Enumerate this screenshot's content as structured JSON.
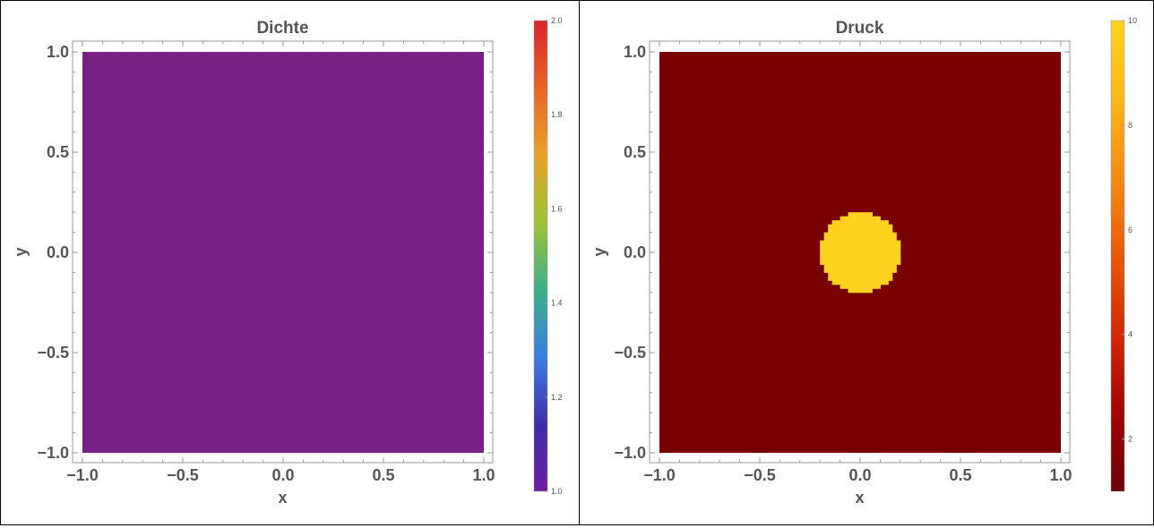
{
  "chart_data": [
    {
      "type": "heatmap",
      "title": "Dichte",
      "xlabel": "x",
      "ylabel": "y",
      "xlim": [
        -1.0,
        1.0
      ],
      "ylim": [
        -1.0,
        1.0
      ],
      "xticks": [
        "−1.0",
        "−0.5",
        "0.0",
        "0.5",
        "1.0"
      ],
      "yticks": [
        "−1.0",
        "−0.5",
        "0.0",
        "0.5",
        "1.0"
      ],
      "xtick_values": [
        -1.0,
        -0.5,
        0.0,
        0.5,
        1.0
      ],
      "ytick_values": [
        -1.0,
        -0.5,
        0.0,
        0.5,
        1.0
      ],
      "field": {
        "background_value": 1.0,
        "disk_value": 1.0,
        "disk_center": [
          0.0,
          0.0
        ],
        "disk_radius": 0.2
      },
      "fill_color": "#782084",
      "colorbar": {
        "min": 1.0,
        "max": 2.0,
        "ticks": [
          "1.0",
          "1.2",
          "1.4",
          "1.6",
          "1.8",
          "2.0"
        ],
        "tick_values": [
          1.0,
          1.2,
          1.4,
          1.6,
          1.8,
          2.0
        ],
        "colors": [
          "#6f1ca2",
          "#3e2fa7",
          "#3d7ee0",
          "#3fae88",
          "#9fc13a",
          "#e5a32c",
          "#e8642b",
          "#d8262b"
        ]
      },
      "grid": false
    },
    {
      "type": "heatmap",
      "title": "Druck",
      "xlabel": "x",
      "ylabel": "y",
      "xlim": [
        -1.0,
        1.0
      ],
      "ylim": [
        -1.0,
        1.0
      ],
      "xticks": [
        "−1.0",
        "−0.5",
        "0.0",
        "0.5",
        "1.0"
      ],
      "yticks": [
        "−1.0",
        "−0.5",
        "0.0",
        "0.5",
        "1.0"
      ],
      "xtick_values": [
        -1.0,
        -0.5,
        0.0,
        0.5,
        1.0
      ],
      "ytick_values": [
        -1.0,
        -0.5,
        0.0,
        0.5,
        1.0
      ],
      "field": {
        "background_value": 1.0,
        "disk_value": 10.0,
        "disk_center": [
          0.0,
          0.0
        ],
        "disk_radius": 0.2
      },
      "background_color": "#780003",
      "disk_color": "#ffd21f",
      "colorbar": {
        "min": 1.0,
        "max": 10.0,
        "ticks": [
          "2",
          "4",
          "6",
          "8",
          "10"
        ],
        "tick_values": [
          2,
          4,
          6,
          8,
          10
        ],
        "colors": [
          "#6a0005",
          "#a10303",
          "#d22a06",
          "#e65a0b",
          "#f38b13",
          "#fbb71b",
          "#ffd21f"
        ]
      },
      "grid": false
    }
  ]
}
